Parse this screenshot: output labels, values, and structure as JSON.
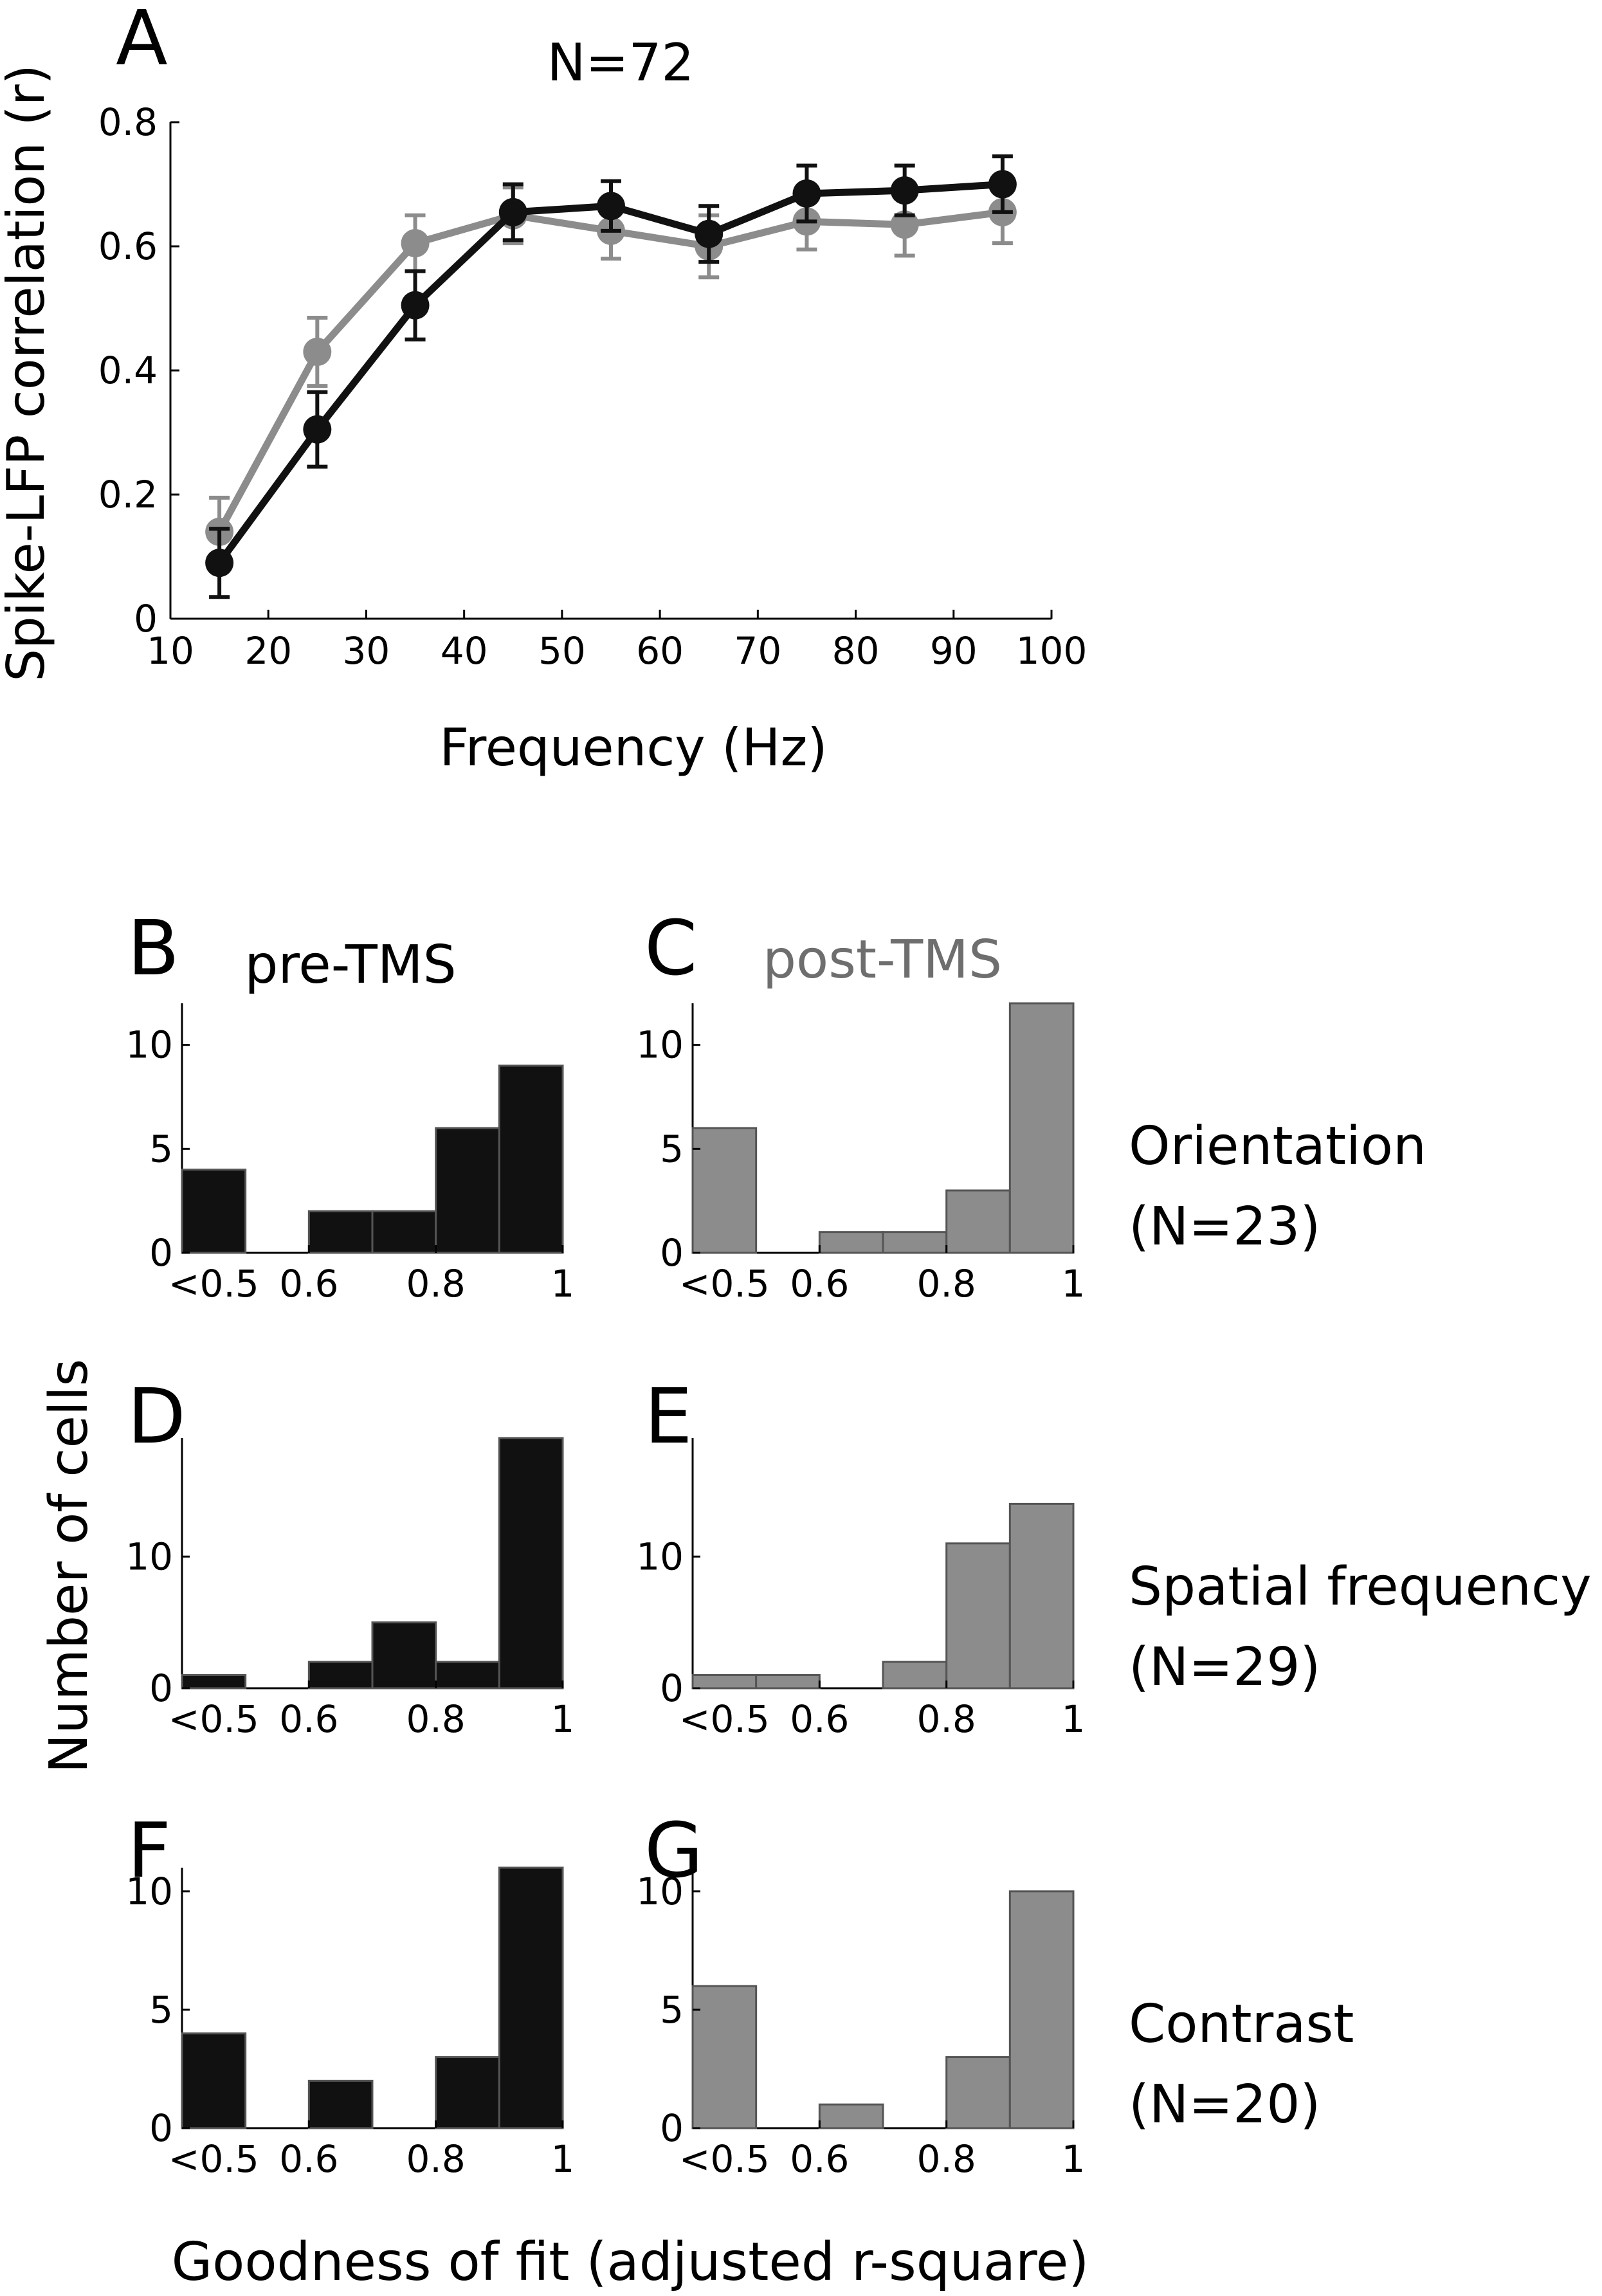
{
  "colors": {
    "pre": "#111111",
    "post": "#8c8c8c",
    "axis": "#000000",
    "post_title": "#6e6e6e"
  },
  "figure": {
    "row_labels": [
      "Orientation",
      "Spatial frequency",
      "Contrast"
    ],
    "row_counts": [
      "(N=23)",
      "(N=29)",
      "(N=20)"
    ],
    "col_titles": [
      "pre-TMS",
      "post-TMS"
    ],
    "hist_ylabel": "Number of cells",
    "hist_xlabel": "Goodness of fit (adjusted r-square)"
  },
  "chart_data": [
    {
      "panel": "A",
      "type": "line",
      "title": "N=72",
      "xlabel": "Frequency (Hz)",
      "ylabel": "Spike-LFP correlation (r)",
      "xlim": [
        10,
        100
      ],
      "ylim": [
        0,
        0.8
      ],
      "xticks": [
        10,
        20,
        30,
        40,
        50,
        60,
        70,
        80,
        90,
        100
      ],
      "yticks": [
        0,
        0.2,
        0.4,
        0.6,
        0.8
      ],
      "ytick_labels": [
        "0",
        "0.2",
        "0.4",
        "0.6",
        "0.8"
      ],
      "x": [
        15,
        25,
        35,
        45,
        55,
        65,
        75,
        85,
        95
      ],
      "grid": false,
      "series": [
        {
          "values": [
            0.09,
            0.305,
            0.505,
            0.655,
            0.665,
            0.62,
            0.685,
            0.69,
            0.7
          ],
          "err": [
            0.055,
            0.06,
            0.055,
            0.045,
            0.04,
            0.045,
            0.045,
            0.04,
            0.045
          ],
          "color": "#111111"
        },
        {
          "values": [
            0.14,
            0.43,
            0.605,
            0.65,
            0.625,
            0.6,
            0.64,
            0.635,
            0.655
          ],
          "err": [
            0.055,
            0.055,
            0.045,
            0.045,
            0.045,
            0.05,
            0.045,
            0.05,
            0.05
          ],
          "color": "#8c8c8c"
        }
      ]
    },
    {
      "panel": "B",
      "type": "bar",
      "condition": "pre-TMS",
      "measure": "Orientation",
      "bins": [
        "<0.5",
        "0.5-0.6",
        "0.6-0.7",
        "0.7-0.8",
        "0.8-0.9",
        "0.9-1"
      ],
      "values": [
        4,
        0,
        2,
        2,
        6,
        9
      ],
      "ylim": [
        0,
        12
      ],
      "yticks": [
        0,
        5,
        10
      ],
      "xtick_labels": [
        "<0.5",
        "0.6",
        "0.8",
        "1"
      ],
      "color": "#111111"
    },
    {
      "panel": "C",
      "type": "bar",
      "condition": "post-TMS",
      "measure": "Orientation",
      "bins": [
        "<0.5",
        "0.5-0.6",
        "0.6-0.7",
        "0.7-0.8",
        "0.8-0.9",
        "0.9-1"
      ],
      "values": [
        6,
        0,
        1,
        1,
        3,
        12
      ],
      "ylim": [
        0,
        12
      ],
      "yticks": [
        0,
        5,
        10
      ],
      "xtick_labels": [
        "<0.5",
        "0.6",
        "0.8",
        "1"
      ],
      "color": "#8c8c8c"
    },
    {
      "panel": "D",
      "type": "bar",
      "condition": "pre-TMS",
      "measure": "Spatial frequency",
      "bins": [
        "<0.5",
        "0.5-0.6",
        "0.6-0.7",
        "0.7-0.8",
        "0.8-0.9",
        "0.9-1"
      ],
      "values": [
        1,
        0,
        2,
        5,
        2,
        19
      ],
      "ylim": [
        0,
        19
      ],
      "yticks": [
        0,
        10
      ],
      "xtick_labels": [
        "<0.5",
        "0.6",
        "0.8",
        "1"
      ],
      "color": "#111111"
    },
    {
      "panel": "E",
      "type": "bar",
      "condition": "post-TMS",
      "measure": "Spatial frequency",
      "bins": [
        "<0.5",
        "0.5-0.6",
        "0.6-0.7",
        "0.7-0.8",
        "0.8-0.9",
        "0.9-1"
      ],
      "values": [
        1,
        1,
        0,
        2,
        11,
        14
      ],
      "ylim": [
        0,
        19
      ],
      "yticks": [
        0,
        10
      ],
      "xtick_labels": [
        "<0.5",
        "0.6",
        "0.8",
        "1"
      ],
      "color": "#8c8c8c"
    },
    {
      "panel": "F",
      "type": "bar",
      "condition": "pre-TMS",
      "measure": "Contrast",
      "bins": [
        "<0.5",
        "0.5-0.6",
        "0.6-0.7",
        "0.7-0.8",
        "0.8-0.9",
        "0.9-1"
      ],
      "values": [
        4,
        0,
        2,
        0,
        3,
        11
      ],
      "ylim": [
        0,
        11
      ],
      "yticks": [
        0,
        5,
        10
      ],
      "xtick_labels": [
        "<0.5",
        "0.6",
        "0.8",
        "1"
      ],
      "color": "#111111"
    },
    {
      "panel": "G",
      "type": "bar",
      "condition": "post-TMS",
      "measure": "Contrast",
      "bins": [
        "<0.5",
        "0.5-0.6",
        "0.6-0.7",
        "0.7-0.8",
        "0.8-0.9",
        "0.9-1"
      ],
      "values": [
        6,
        0,
        1,
        0,
        3,
        10
      ],
      "ylim": [
        0,
        11
      ],
      "yticks": [
        0,
        5,
        10
      ],
      "xtick_labels": [
        "<0.5",
        "0.6",
        "0.8",
        "1"
      ],
      "color": "#8c8c8c"
    }
  ]
}
